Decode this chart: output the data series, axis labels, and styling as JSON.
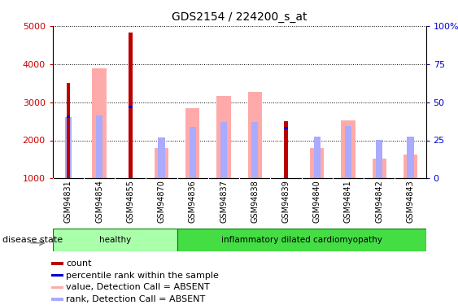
{
  "title": "GDS2154 / 224200_s_at",
  "samples": [
    "GSM94831",
    "GSM94854",
    "GSM94855",
    "GSM94870",
    "GSM94836",
    "GSM94837",
    "GSM94838",
    "GSM94839",
    "GSM94840",
    "GSM94841",
    "GSM94842",
    "GSM94843"
  ],
  "count_values": [
    3500,
    null,
    4820,
    null,
    null,
    null,
    null,
    2500,
    null,
    null,
    null,
    null
  ],
  "percentile_values": [
    2580,
    null,
    2850,
    null,
    null,
    null,
    null,
    2280,
    null,
    null,
    null,
    null
  ],
  "absent_value_values": [
    null,
    3880,
    null,
    1800,
    2850,
    3170,
    3280,
    null,
    1800,
    2520,
    1510,
    1630
  ],
  "absent_rank_values": [
    2600,
    2650,
    null,
    2080,
    2360,
    2480,
    2470,
    null,
    2090,
    2380,
    2020,
    2090
  ],
  "ylim": [
    1000,
    5000
  ],
  "yticks": [
    1000,
    2000,
    3000,
    4000,
    5000
  ],
  "right_yticks": [
    0,
    25,
    50,
    75,
    100
  ],
  "right_ylim": [
    0,
    100
  ],
  "groups": [
    {
      "label": "healthy",
      "start": 0,
      "end": 4,
      "color": "#aaffaa"
    },
    {
      "label": "inflammatory dilated cardiomyopathy",
      "start": 4,
      "end": 12,
      "color": "#44dd44"
    }
  ],
  "count_color": "#bb0000",
  "percentile_color": "#0000cc",
  "absent_value_color": "#ffaaaa",
  "absent_rank_color": "#aaaaff",
  "tick_label_color_left": "#cc0000",
  "tick_label_color_right": "#0000cc",
  "disease_state_label": "disease state",
  "xtick_bg_color": "#cccccc",
  "legend_items": [
    {
      "label": "count",
      "color": "#bb0000"
    },
    {
      "label": "percentile rank within the sample",
      "color": "#0000cc"
    },
    {
      "label": "value, Detection Call = ABSENT",
      "color": "#ffaaaa"
    },
    {
      "label": "rank, Detection Call = ABSENT",
      "color": "#aaaaff"
    }
  ]
}
